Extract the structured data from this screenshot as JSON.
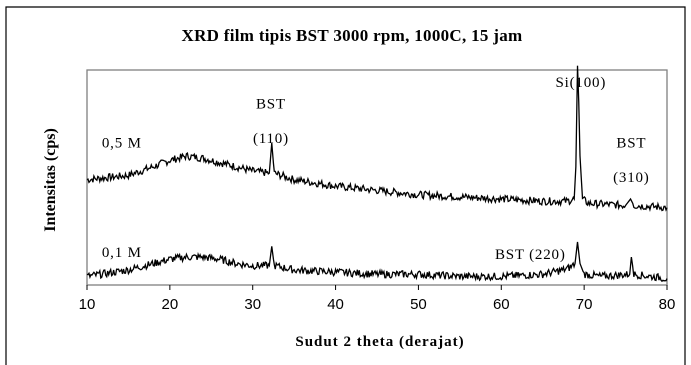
{
  "chart_data": {
    "type": "line",
    "title": "XRD film tipis BST 3000 rpm, 1000C, 15 jam",
    "xlabel": "Sudut 2 theta (derajat)",
    "ylabel": "Intensitas (cps)",
    "xlim": [
      10,
      80
    ],
    "x_ticks": [
      10,
      20,
      30,
      40,
      50,
      60,
      70,
      80
    ],
    "y_ticks_shown": false,
    "grid": false,
    "legend": "none",
    "series": [
      {
        "name": "0,5 M",
        "color": "#000000",
        "baseline": 0.5,
        "points": [
          [
            10,
            0.49
          ],
          [
            15,
            0.51
          ],
          [
            18,
            0.55
          ],
          [
            20,
            0.58
          ],
          [
            22,
            0.6
          ],
          [
            24,
            0.59
          ],
          [
            26,
            0.57
          ],
          [
            28,
            0.55
          ],
          [
            30,
            0.53
          ],
          [
            32,
            0.52
          ],
          [
            32.3,
            0.66
          ],
          [
            32.6,
            0.52
          ],
          [
            35,
            0.49
          ],
          [
            40,
            0.46
          ],
          [
            45,
            0.44
          ],
          [
            50,
            0.42
          ],
          [
            55,
            0.41
          ],
          [
            60,
            0.4
          ],
          [
            65,
            0.39
          ],
          [
            68,
            0.39
          ],
          [
            68.8,
            0.4
          ],
          [
            69.0,
            0.55
          ],
          [
            69.2,
            1.02
          ],
          [
            69.35,
            0.85
          ],
          [
            69.5,
            0.6
          ],
          [
            69.8,
            0.4
          ],
          [
            70.5,
            0.38
          ],
          [
            75,
            0.37
          ],
          [
            75.6,
            0.4
          ],
          [
            76,
            0.37
          ],
          [
            80,
            0.36
          ]
        ]
      },
      {
        "name": "0,1 M",
        "color": "#000000",
        "baseline": 0.05,
        "points": [
          [
            10,
            0.04
          ],
          [
            15,
            0.07
          ],
          [
            18,
            0.1
          ],
          [
            20,
            0.12
          ],
          [
            22,
            0.13
          ],
          [
            24,
            0.13
          ],
          [
            26,
            0.12
          ],
          [
            28,
            0.1
          ],
          [
            30,
            0.09
          ],
          [
            32,
            0.09
          ],
          [
            32.3,
            0.18
          ],
          [
            32.6,
            0.09
          ],
          [
            35,
            0.07
          ],
          [
            40,
            0.06
          ],
          [
            45,
            0.05
          ],
          [
            50,
            0.05
          ],
          [
            55,
            0.04
          ],
          [
            60,
            0.04
          ],
          [
            65,
            0.05
          ],
          [
            67.5,
            0.07
          ],
          [
            68.2,
            0.08
          ],
          [
            68.9,
            0.1
          ],
          [
            69.2,
            0.2
          ],
          [
            69.5,
            0.1
          ],
          [
            70,
            0.05
          ],
          [
            72,
            0.04
          ],
          [
            75.5,
            0.05
          ],
          [
            75.7,
            0.13
          ],
          [
            76,
            0.05
          ],
          [
            80,
            0.03
          ]
        ]
      }
    ],
    "annotations": [
      {
        "text": "0,5 M",
        "x": 14.2,
        "y": 0.64
      },
      {
        "text": "BST",
        "x": 32.2,
        "y": 0.82
      },
      {
        "text": "(110)",
        "x": 32.2,
        "y": 0.66
      },
      {
        "text": "Si(100)",
        "x": 69.6,
        "y": 0.92
      },
      {
        "text": "BST",
        "x": 75.7,
        "y": 0.64
      },
      {
        "text": "(310)",
        "x": 75.7,
        "y": 0.48
      },
      {
        "text": "0,1 M",
        "x": 14.2,
        "y": 0.13
      },
      {
        "text": "BST  (220)",
        "x": 63.5,
        "y": 0.12
      }
    ]
  }
}
